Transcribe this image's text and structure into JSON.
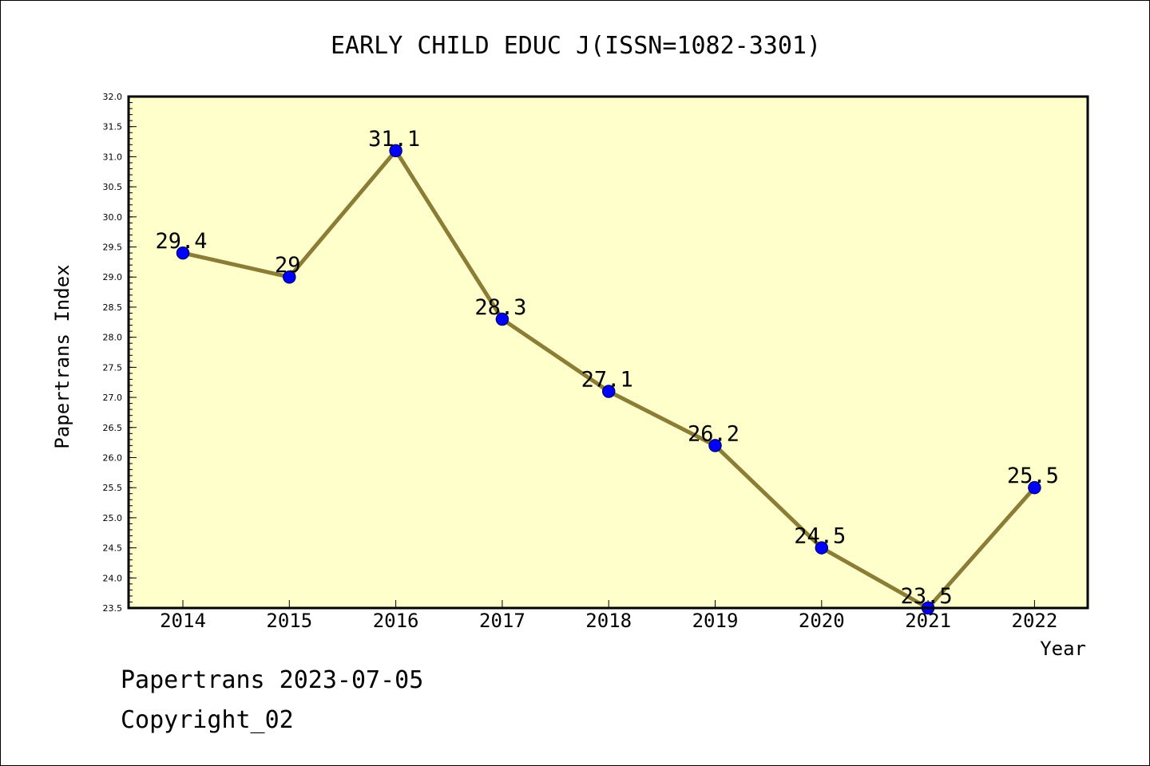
{
  "chart_data": {
    "type": "line",
    "title": "EARLY CHILD EDUC J(ISSN=1082-3301)",
    "xlabel": "Year",
    "ylabel": "Papertrans Index",
    "categories": [
      "2014",
      "2015",
      "2016",
      "2017",
      "2018",
      "2019",
      "2020",
      "2021",
      "2022"
    ],
    "series": [
      {
        "values": [
          29.4,
          29,
          31.1,
          28.3,
          27.1,
          26.2,
          24.5,
          23.5,
          25.5
        ],
        "data_labels": [
          "29.4",
          "29",
          "31.1",
          "28.3",
          "27.1",
          "26.2",
          "24.5",
          "23.5",
          "25.5"
        ]
      }
    ],
    "ylim": [
      23.5,
      32.0
    ],
    "yticks": [
      "23.5",
      "24.0",
      "24.5",
      "25.0",
      "25.5",
      "26.0",
      "26.5",
      "27.0",
      "27.5",
      "28.0",
      "28.5",
      "29.0",
      "29.5",
      "30.0",
      "30.5",
      "31.0",
      "31.5",
      "32.0"
    ],
    "grid": false,
    "colors": {
      "plot_background": "#ffffcc",
      "line": "#8b7d35",
      "marker_fill": "#0000ff",
      "marker_edge": "#000080"
    }
  },
  "footer": {
    "date_text": "Papertrans 2023-07-05",
    "copyright_text": "Copyright_02"
  }
}
